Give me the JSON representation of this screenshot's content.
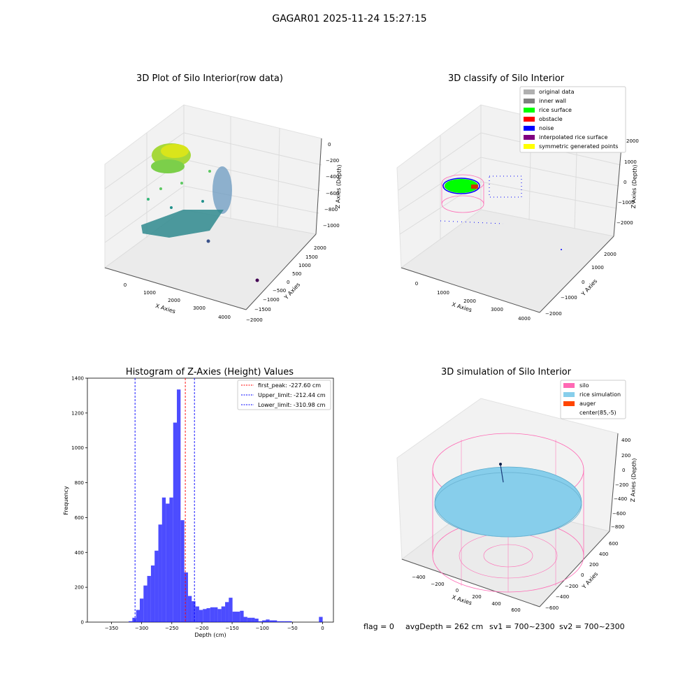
{
  "suptitle": "GAGAR01 2025-11-24 15:27:15",
  "panels": {
    "raw": {
      "title": "3D Plot of Silo Interior(row data)",
      "xlabel": "X Axies",
      "ylabel": "Y Axies",
      "zlabel": "Z Axies (Depth)",
      "xticks": [
        "0",
        "1000",
        "2000",
        "3000",
        "4000"
      ],
      "yticks": [
        "−2000",
        "−1500",
        "−1000",
        "−500",
        "0",
        "500",
        "1000",
        "1500",
        "2000"
      ],
      "zticks": [
        "0",
        "−200",
        "−400",
        "−600",
        "−800",
        "−1000"
      ]
    },
    "classify": {
      "title": "3D classify of Silo Interior",
      "xlabel": "X Axies",
      "ylabel": "Y Axies",
      "zlabel": "Z Axies (Depth)",
      "xticks": [
        "0",
        "1000",
        "2000",
        "3000",
        "4000"
      ],
      "yticks": [
        "−2000",
        "−1000",
        "0",
        "1000",
        "2000"
      ],
      "zticks": [
        "2000",
        "1000",
        "0",
        "−1000",
        "−2000"
      ],
      "legend": [
        {
          "label": "original data",
          "color": "#b0b0b0"
        },
        {
          "label": "inner wall",
          "color": "#808080"
        },
        {
          "label": "rice surface",
          "color": "#00ff00"
        },
        {
          "label": "obstacle",
          "color": "#ff0000"
        },
        {
          "label": "noise",
          "color": "#0000ff"
        },
        {
          "label": "interpolated rice surface",
          "color": "#800080"
        },
        {
          "label": "symmetric generated points",
          "color": "#ffff00"
        }
      ]
    },
    "simulation": {
      "title": "3D simulation of Silo Interior",
      "xlabel": "X Axies",
      "ylabel": "Y Axies",
      "zlabel": "Z Axies (Depth)",
      "xticks": [
        "−400",
        "−200",
        "0",
        "200",
        "400",
        "600"
      ],
      "yticks": [
        "−600",
        "−400",
        "−200",
        "0",
        "200",
        "400",
        "600"
      ],
      "zticks": [
        "400",
        "200",
        "0",
        "−200",
        "−400",
        "−600",
        "−800"
      ],
      "legend": [
        {
          "label": "silo",
          "color": "#ff69b4"
        },
        {
          "label": "rice simulation",
          "color": "#87ceeb"
        },
        {
          "label": "auger",
          "color": "#ff4500"
        },
        {
          "label": "center(85,-5)",
          "color": "#ffffff"
        }
      ]
    }
  },
  "footer": {
    "flag": "flag = 0",
    "avg": "avgDepth = 262 cm",
    "sv1": "sv1 = 700~2300",
    "sv2": "sv2 = 700~2300"
  },
  "chart_data": {
    "type": "bar",
    "title": "Histogram of Z-Axies (Height) Values",
    "xlabel": "Depth (cm)",
    "ylabel": "Frequency",
    "xlim": [
      -390,
      18
    ],
    "ylim": [
      0,
      1400
    ],
    "xticks": [
      -350,
      -300,
      -250,
      -200,
      -150,
      -100,
      -50,
      0
    ],
    "yticks": [
      0,
      200,
      400,
      600,
      800,
      1000,
      1200,
      1400
    ],
    "bin_width": 6.15,
    "bar_color": "#0000ff",
    "bins": [
      [
        -321.5,
        5
      ],
      [
        -315.4,
        25
      ],
      [
        -309.2,
        70
      ],
      [
        -303.1,
        135
      ],
      [
        -296.9,
        210
      ],
      [
        -290.8,
        265
      ],
      [
        -284.6,
        325
      ],
      [
        -278.5,
        410
      ],
      [
        -272.3,
        560
      ],
      [
        -266.2,
        715
      ],
      [
        -260.0,
        680
      ],
      [
        -253.9,
        715
      ],
      [
        -247.7,
        1145
      ],
      [
        -241.6,
        1335
      ],
      [
        -235.4,
        585
      ],
      [
        -229.3,
        285
      ],
      [
        -223.1,
        150
      ],
      [
        -217.0,
        120
      ],
      [
        -210.8,
        90
      ],
      [
        -204.7,
        70
      ],
      [
        -198.5,
        75
      ],
      [
        -192.4,
        80
      ],
      [
        -186.2,
        85
      ],
      [
        -180.1,
        85
      ],
      [
        -173.9,
        75
      ],
      [
        -167.8,
        90
      ],
      [
        -161.6,
        115
      ],
      [
        -155.5,
        140
      ],
      [
        -149.3,
        60
      ],
      [
        -143.2,
        60
      ],
      [
        -137.0,
        65
      ],
      [
        -130.9,
        30
      ],
      [
        -124.7,
        25
      ],
      [
        -118.6,
        25
      ],
      [
        -112.4,
        20
      ],
      [
        -106.3,
        5
      ],
      [
        -100.1,
        10
      ],
      [
        -94.0,
        15
      ],
      [
        -87.8,
        10
      ],
      [
        -81.7,
        10
      ],
      [
        -75.5,
        5
      ],
      [
        -69.4,
        5
      ],
      [
        -63.2,
        5
      ],
      [
        -57.1,
        5
      ],
      [
        -6.0,
        30
      ]
    ],
    "lines": [
      {
        "label": "first_peak: -227.60 cm",
        "value": -227.6,
        "color": "#ff0000"
      },
      {
        "label": "Upper_limit: -212.44 cm",
        "value": -212.44,
        "color": "#0000ff"
      },
      {
        "label": "Lower_limit: -310.98 cm",
        "value": -310.98,
        "color": "#0000ff"
      }
    ]
  }
}
